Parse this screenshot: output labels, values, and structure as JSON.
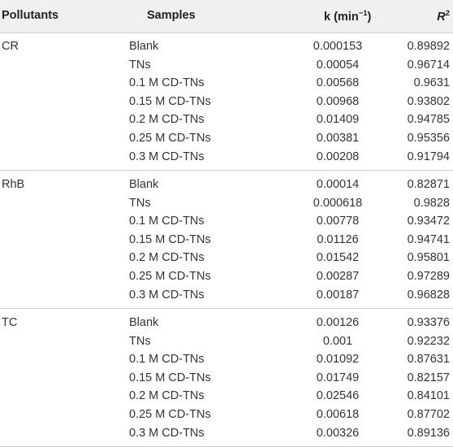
{
  "header": {
    "pollutants": "Pollutants",
    "samples": "Samples",
    "k_label": "k (min",
    "k_sup": "−1",
    "k_close": ")",
    "r2_label": "R",
    "r2_sup": "2"
  },
  "groups": [
    {
      "name": "CR",
      "rows": [
        {
          "sample": "Blank",
          "k": "0.000153",
          "r2": "0.89892"
        },
        {
          "sample": "TNs",
          "k": "0.00054",
          "r2": "0.96714"
        },
        {
          "sample": "0.1 M CD-TNs",
          "k": "0.00568",
          "r2": "0.9631"
        },
        {
          "sample": "0.15 M CD-TNs",
          "k": "0.00968",
          "r2": "0.93802"
        },
        {
          "sample": "0.2 M CD-TNs",
          "k": "0.01409",
          "r2": "0.94785"
        },
        {
          "sample": "0.25 M CD-TNs",
          "k": "0.00381",
          "r2": "0.95356"
        },
        {
          "sample": "0.3 M CD-TNs",
          "k": "0.00208",
          "r2": "0.91794"
        }
      ]
    },
    {
      "name": "RhB",
      "rows": [
        {
          "sample": "Blank",
          "k": "0.00014",
          "r2": "0.82871"
        },
        {
          "sample": "TNs",
          "k": "0.000618",
          "r2": "0.9828"
        },
        {
          "sample": "0.1 M CD-TNs",
          "k": "0.00778",
          "r2": "0.93472"
        },
        {
          "sample": "0.15 M CD-TNs",
          "k": "0.01126",
          "r2": "0.94741"
        },
        {
          "sample": "0.2 M CD-TNs",
          "k": "0.01542",
          "r2": "0.95801"
        },
        {
          "sample": "0.25 M CD-TNs",
          "k": "0.00287",
          "r2": "0.97289"
        },
        {
          "sample": "0.3 M CD-TNs",
          "k": "0.00187",
          "r2": "0.96828"
        }
      ]
    },
    {
      "name": "TC",
      "rows": [
        {
          "sample": "Blank",
          "k": "0.00126",
          "r2": "0.93376"
        },
        {
          "sample": "TNs",
          "k": "0.001",
          "r2": "0.92232"
        },
        {
          "sample": "0.1 M CD-TNs",
          "k": "0.01092",
          "r2": "0.87631"
        },
        {
          "sample": "0.15 M CD-TNs",
          "k": "0.01749",
          "r2": "0.82157"
        },
        {
          "sample": "0.2 M CD-TNs",
          "k": "0.02546",
          "r2": "0.84101"
        },
        {
          "sample": "0.25 M CD-TNs",
          "k": "0.00618",
          "r2": "0.87702"
        },
        {
          "sample": "0.3 M CD-TNs",
          "k": "0.00326",
          "r2": "0.89136"
        }
      ]
    }
  ]
}
